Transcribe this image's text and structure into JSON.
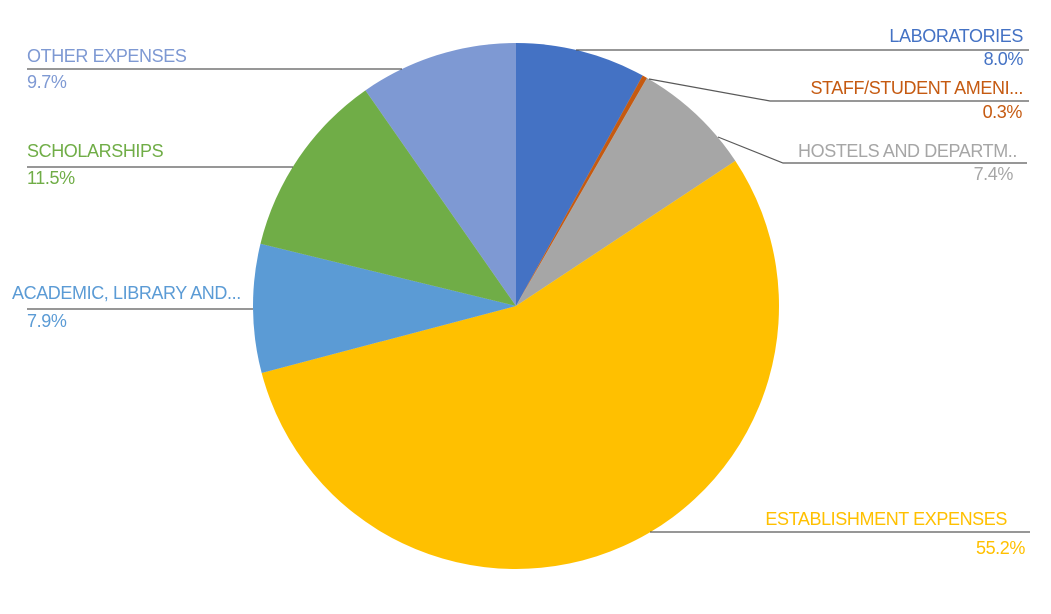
{
  "chart_data": {
    "type": "pie",
    "title": "",
    "start_angle_deg": 0,
    "direction": "clockwise",
    "labels_outside": true,
    "leader_lines": true,
    "leader_line_color": "#595959",
    "background_color": "#ffffff",
    "slices": [
      {
        "id": "laboratories",
        "label": "LABORATORIES",
        "value": 8.0,
        "pct_label": "8.0%",
        "color": "#4472C4"
      },
      {
        "id": "staff-student-amenities",
        "label": "STAFF/STUDENT AMENI...",
        "value": 0.3,
        "pct_label": "0.3%",
        "color": "#C55A11"
      },
      {
        "id": "hostels-departments",
        "label": "HOSTELS AND DEPARTM..",
        "value": 7.4,
        "pct_label": "7.4%",
        "color": "#A6A6A6"
      },
      {
        "id": "establishment-expenses",
        "label": "ESTABLISHMENT EXPENSES",
        "value": 55.2,
        "pct_label": "55.2%",
        "color": "#FFC000"
      },
      {
        "id": "academic-library",
        "label": "ACADEMIC, LIBRARY AND...",
        "value": 7.9,
        "pct_label": "7.9%",
        "color": "#5B9BD5"
      },
      {
        "id": "scholarships",
        "label": "SCHOLARSHIPS",
        "value": 11.5,
        "pct_label": "11.5%",
        "color": "#70AD47"
      },
      {
        "id": "other-expenses",
        "label": "OTHER EXPENSES",
        "value": 9.7,
        "pct_label": "9.7%",
        "color": "#7E99D3"
      }
    ]
  }
}
